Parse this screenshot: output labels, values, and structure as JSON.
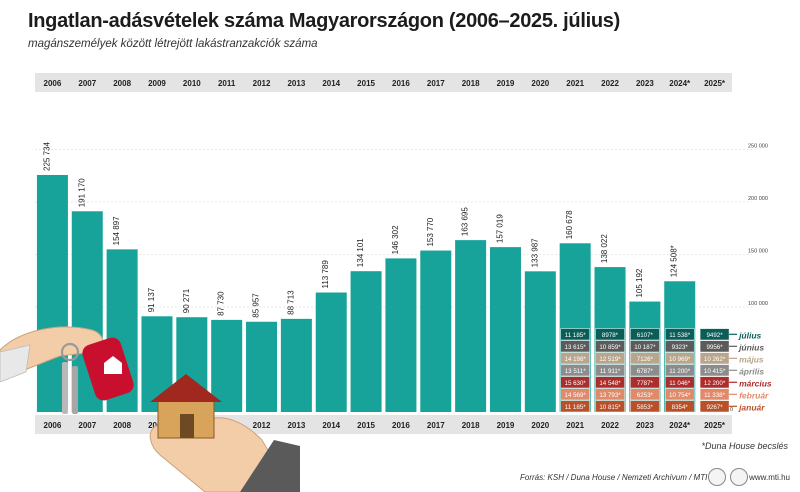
{
  "title": "Ingatlan-adásvételek száma Magyarországon (2006–2025. július)",
  "subtitle": "magánszemélyek között létrejött lakástranzakciók száma",
  "footnote": "*Duna House becslés",
  "source": "Forrás: KSH / Duna House / Nemzeti Archívum / MTI",
  "website": "www.mti.hu",
  "colors": {
    "bar": "#18a39a",
    "header_band": "#e4e4e4",
    "months": [
      "#b8502a",
      "#e08a6a",
      "#ad2d2d",
      "#8c8c8c",
      "#b9a58c",
      "#5b5b5b",
      "#0b5e58"
    ]
  },
  "chart_data": {
    "type": "bar",
    "title": "Ingatlan-adásvételek száma Magyarországon (2006–2025. július)",
    "categories": [
      "2006",
      "2007",
      "2008",
      "2009",
      "2010",
      "2011",
      "2012",
      "2013",
      "2014",
      "2015",
      "2016",
      "2017",
      "2018",
      "2019",
      "2020",
      "2021",
      "2022",
      "2023",
      "2024*",
      "2025*"
    ],
    "values": [
      225734,
      191170,
      154897,
      91137,
      90271,
      87730,
      85957,
      88713,
      113789,
      134101,
      146302,
      153770,
      163695,
      157019,
      133987,
      160678,
      138022,
      105192,
      124508,
      null
    ],
    "value_labels": [
      "225 734",
      "191 170",
      "154 897",
      "91 137",
      "90 271",
      "87 730",
      "85 957",
      "88 713",
      "113 789",
      "134 101",
      "146 302",
      "153 770",
      "163 695",
      "157 019",
      "133 987",
      "160 678",
      "138 022",
      "105 192",
      "124 508*",
      ""
    ],
    "ylim": [
      0,
      250000
    ],
    "yticks": [
      100000,
      150000,
      200000,
      250000
    ],
    "ytick_labels": [
      "100 000",
      "150 000",
      "200 000",
      "250 000"
    ],
    "grid": true,
    "monthly_breakdown": {
      "months": [
        "január",
        "február",
        "március",
        "április",
        "május",
        "június",
        "július"
      ],
      "series": [
        {
          "year": "2021",
          "labels": [
            "11 185*",
            "14 569*",
            "15 630*",
            "13 511*",
            "14 198*",
            "13 615*",
            "11 185*"
          ],
          "values": [
            11185,
            14569,
            15630,
            13511,
            14198,
            13615,
            11185
          ]
        },
        {
          "year": "2022",
          "labels": [
            "10 815*",
            "13 793*",
            "14 548*",
            "11 911*",
            "12 519*",
            "10 859*",
            "8978*"
          ],
          "values": [
            10815,
            13793,
            14548,
            11911,
            12519,
            10859,
            8978
          ]
        },
        {
          "year": "2023",
          "labels": [
            "5853*",
            "6253*",
            "7787*",
            "6787*",
            "7126*",
            "10 187*",
            "6107*"
          ],
          "values": [
            5853,
            6253,
            7787,
            6787,
            7126,
            10187,
            6107
          ]
        },
        {
          "year": "2024*",
          "labels": [
            "8354*",
            "10 754*",
            "11 046*",
            "11 200*",
            "10 969*",
            "9323*",
            "11 538*"
          ],
          "values": [
            8354,
            10754,
            11046,
            11200,
            10969,
            9323,
            11538
          ]
        },
        {
          "year": "2025*",
          "labels": [
            "9267*",
            "11 338*",
            "12 200*",
            "10 415*",
            "10 262*",
            "9956*",
            "9492*"
          ],
          "values": [
            9267,
            11338,
            12200,
            10415,
            10262,
            9956,
            9492
          ]
        }
      ]
    }
  }
}
